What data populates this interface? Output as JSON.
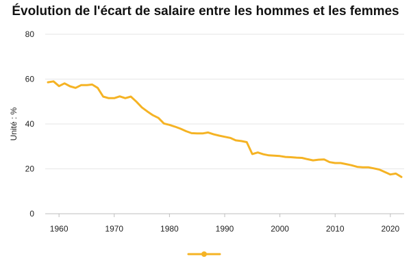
{
  "chart_data": {
    "type": "line",
    "title": "Évolution de l'écart de salaire entre les hommes et les femmes",
    "xlabel": "",
    "ylabel": "Unité : %",
    "xlim": [
      1957.5,
      2022.5
    ],
    "ylim": [
      0,
      80
    ],
    "x_ticks": [
      1960,
      1970,
      1980,
      1990,
      2000,
      2010,
      2020
    ],
    "y_ticks": [
      0,
      20,
      40,
      60,
      80
    ],
    "grid": true,
    "legend": "bottom-center",
    "colors": {
      "series": "#f5b324",
      "grid": "#e6e6e6",
      "text": "#222222"
    },
    "series": [
      {
        "x": [
          1958,
          1959,
          1960,
          1961,
          1962,
          1963,
          1964,
          1965,
          1966,
          1967,
          1968,
          1969,
          1970,
          1971,
          1972,
          1973,
          1974,
          1975,
          1976,
          1977,
          1978,
          1979,
          1980,
          1981,
          1982,
          1983,
          1984,
          1985,
          1986,
          1987,
          1988,
          1989,
          1990,
          1991,
          1992,
          1993,
          1994,
          1995,
          1996,
          1997,
          1998,
          1999,
          2000,
          2001,
          2002,
          2003,
          2004,
          2005,
          2006,
          2007,
          2008,
          2009,
          2010,
          2011,
          2012,
          2013,
          2014,
          2015,
          2016,
          2017,
          2018,
          2019,
          2020,
          2021,
          2022
        ],
        "values": [
          58.6,
          59.0,
          56.9,
          58.1,
          56.8,
          56.1,
          57.3,
          57.3,
          57.6,
          56.1,
          52.2,
          51.5,
          51.5,
          52.3,
          51.5,
          52.2,
          50.0,
          47.4,
          45.6,
          43.9,
          42.7,
          40.2,
          39.6,
          38.8,
          37.9,
          36.8,
          35.9,
          35.8,
          35.8,
          36.2,
          35.4,
          34.8,
          34.3,
          33.8,
          32.7,
          32.4,
          31.9,
          26.6,
          27.3,
          26.5,
          26.0,
          25.9,
          25.7,
          25.3,
          25.2,
          25.0,
          24.9,
          24.3,
          23.8,
          24.1,
          24.2,
          23.0,
          22.6,
          22.6,
          22.1,
          21.6,
          20.9,
          20.7,
          20.7,
          20.2,
          19.7,
          18.6,
          17.5,
          17.9,
          16.4
        ]
      }
    ]
  }
}
